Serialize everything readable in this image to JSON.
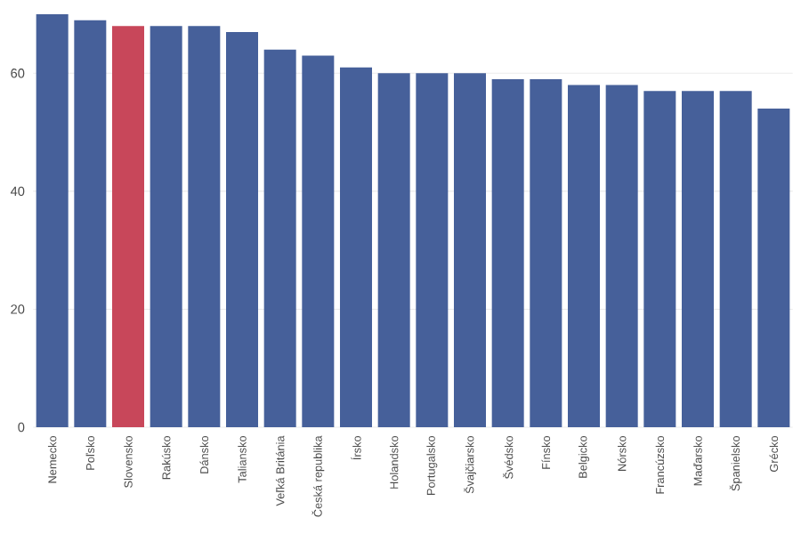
{
  "chart_data": {
    "type": "bar",
    "categories": [
      "Nemecko",
      "Poľsko",
      "Slovensko",
      "Rakúsko",
      "Dánsko",
      "Taliansko",
      "Veľká Británia",
      "Česká republika",
      "Írsko",
      "Holandsko",
      "Portugalsko",
      "Švajčiarsko",
      "Švédsko",
      "Fínsko",
      "Belgicko",
      "Nórsko",
      "Francúzsko",
      "Maďarsko",
      "Španielsko",
      "Grécko"
    ],
    "values": [
      70,
      69,
      68,
      68,
      68,
      67,
      64,
      63,
      61,
      60,
      60,
      60,
      59,
      59,
      58,
      58,
      57,
      57,
      57,
      54
    ],
    "colors": [
      "#46609a",
      "#46609a",
      "#c8475a",
      "#46609a",
      "#46609a",
      "#46609a",
      "#46609a",
      "#46609a",
      "#46609a",
      "#46609a",
      "#46609a",
      "#46609a",
      "#46609a",
      "#46609a",
      "#46609a",
      "#46609a",
      "#46609a",
      "#46609a",
      "#46609a",
      "#46609a"
    ],
    "ylim": [
      0,
      70
    ],
    "yticks": [
      0,
      20,
      40,
      60
    ],
    "grid": "y"
  }
}
